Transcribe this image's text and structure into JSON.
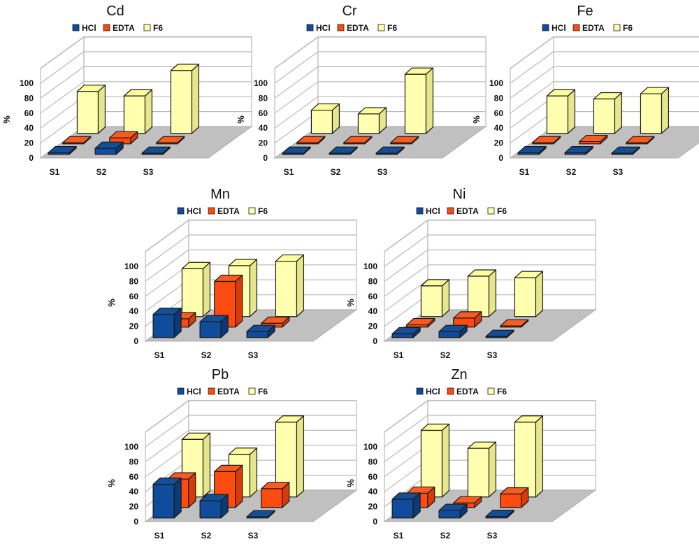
{
  "chart_data": [
    {
      "type": "bar",
      "title": "Cd",
      "xlabel": "",
      "ylabel": "%",
      "ylim": [
        0,
        100
      ],
      "yticks": [
        "0",
        "20",
        "40",
        "60",
        "80",
        "100"
      ],
      "categories": [
        "S1",
        "S2",
        "S3"
      ],
      "legend": [
        "HCl",
        "EDTA",
        "F6"
      ],
      "legend_position": "top",
      "grid": true,
      "series": [
        {
          "name": "HCl",
          "values": [
            2,
            8,
            0.5
          ]
        },
        {
          "name": "EDTA",
          "values": [
            1,
            8,
            1
          ]
        },
        {
          "name": "F6",
          "values": [
            56,
            50,
            84
          ]
        }
      ]
    },
    {
      "type": "bar",
      "title": "Cr",
      "xlabel": "",
      "ylabel": "%",
      "ylim": [
        0,
        100
      ],
      "yticks": [
        "0",
        "20",
        "40",
        "60",
        "80",
        "100"
      ],
      "categories": [
        "S1",
        "S2",
        "S3"
      ],
      "legend": [
        "HCl",
        "EDTA",
        "F6"
      ],
      "legend_position": "top",
      "grid": true,
      "series": [
        {
          "name": "HCl",
          "values": [
            0.5,
            0.5,
            0.5
          ]
        },
        {
          "name": "EDTA",
          "values": [
            0.5,
            0.5,
            0.5
          ]
        },
        {
          "name": "F6",
          "values": [
            31,
            26,
            79
          ]
        }
      ]
    },
    {
      "type": "bar",
      "title": "Fe",
      "xlabel": "",
      "ylabel": "%",
      "ylim": [
        0,
        100
      ],
      "yticks": [
        "0",
        "20",
        "40",
        "60",
        "80",
        "100"
      ],
      "categories": [
        "S1",
        "S2",
        "S3"
      ],
      "legend": [
        "HCl",
        "EDTA",
        "F6"
      ],
      "legend_position": "top",
      "grid": true,
      "series": [
        {
          "name": "HCl",
          "values": [
            2,
            2,
            1
          ]
        },
        {
          "name": "EDTA",
          "values": [
            1,
            3,
            1
          ]
        },
        {
          "name": "F6",
          "values": [
            50,
            46,
            53
          ]
        }
      ]
    },
    {
      "type": "bar",
      "title": "Mn",
      "xlabel": "",
      "ylabel": "%",
      "ylim": [
        0,
        100
      ],
      "yticks": [
        "0",
        "20",
        "40",
        "60",
        "80",
        "100"
      ],
      "categories": [
        "S1",
        "S2",
        "S3"
      ],
      "legend": [
        "HCl",
        "EDTA",
        "F6"
      ],
      "legend_position": "top",
      "grid": true,
      "series": [
        {
          "name": "HCl",
          "values": [
            31,
            21,
            8
          ]
        },
        {
          "name": "EDTA",
          "values": [
            11,
            61,
            5
          ]
        },
        {
          "name": "F6",
          "values": [
            64,
            68,
            74
          ]
        }
      ]
    },
    {
      "type": "bar",
      "title": "Ni",
      "xlabel": "",
      "ylabel": "%",
      "ylim": [
        0,
        100
      ],
      "yticks": [
        "0",
        "20",
        "40",
        "60",
        "80",
        "100"
      ],
      "categories": [
        "S1",
        "S2",
        "S3"
      ],
      "legend": [
        "HCl",
        "EDTA",
        "F6"
      ],
      "legend_position": "top",
      "grid": true,
      "series": [
        {
          "name": "HCl",
          "values": [
            5,
            8,
            1
          ]
        },
        {
          "name": "EDTA",
          "values": [
            3,
            12,
            1
          ]
        },
        {
          "name": "F6",
          "values": [
            41,
            54,
            52
          ]
        }
      ]
    },
    {
      "type": "bar",
      "title": "Pb",
      "xlabel": "",
      "ylabel": "%",
      "ylim": [
        0,
        100
      ],
      "yticks": [
        "0",
        "20",
        "40",
        "60",
        "80",
        "100"
      ],
      "categories": [
        "S1",
        "S2",
        "S3"
      ],
      "legend": [
        "HCl",
        "EDTA",
        "F6"
      ],
      "legend_position": "top",
      "grid": true,
      "series": [
        {
          "name": "HCl",
          "values": [
            45,
            23,
            1
          ]
        },
        {
          "name": "EDTA",
          "values": [
            38,
            48,
            25
          ]
        },
        {
          "name": "F6",
          "values": [
            77,
            57,
            100
          ]
        }
      ]
    },
    {
      "type": "bar",
      "title": "Zn",
      "xlabel": "",
      "ylabel": "%",
      "ylim": [
        0,
        100
      ],
      "yticks": [
        "0",
        "20",
        "40",
        "60",
        "80",
        "100"
      ],
      "categories": [
        "S1",
        "S2",
        "S3"
      ],
      "legend": [
        "HCl",
        "EDTA",
        "F6"
      ],
      "legend_position": "top",
      "grid": true,
      "series": [
        {
          "name": "HCl",
          "values": [
            25,
            10,
            2
          ]
        },
        {
          "name": "EDTA",
          "values": [
            19,
            6,
            18
          ]
        },
        {
          "name": "F6",
          "values": [
            89,
            65,
            100
          ]
        }
      ]
    }
  ],
  "colors": {
    "HCl": {
      "front": "#0f4c9c",
      "top": "#144f96",
      "side": "#0b3a78"
    },
    "EDTA": {
      "front": "#ff4a10",
      "top": "#ff5a20",
      "side": "#d83a08"
    },
    "F6": {
      "front": "#ffffb0",
      "top": "#ffff9c",
      "side": "#e6e68c"
    }
  }
}
